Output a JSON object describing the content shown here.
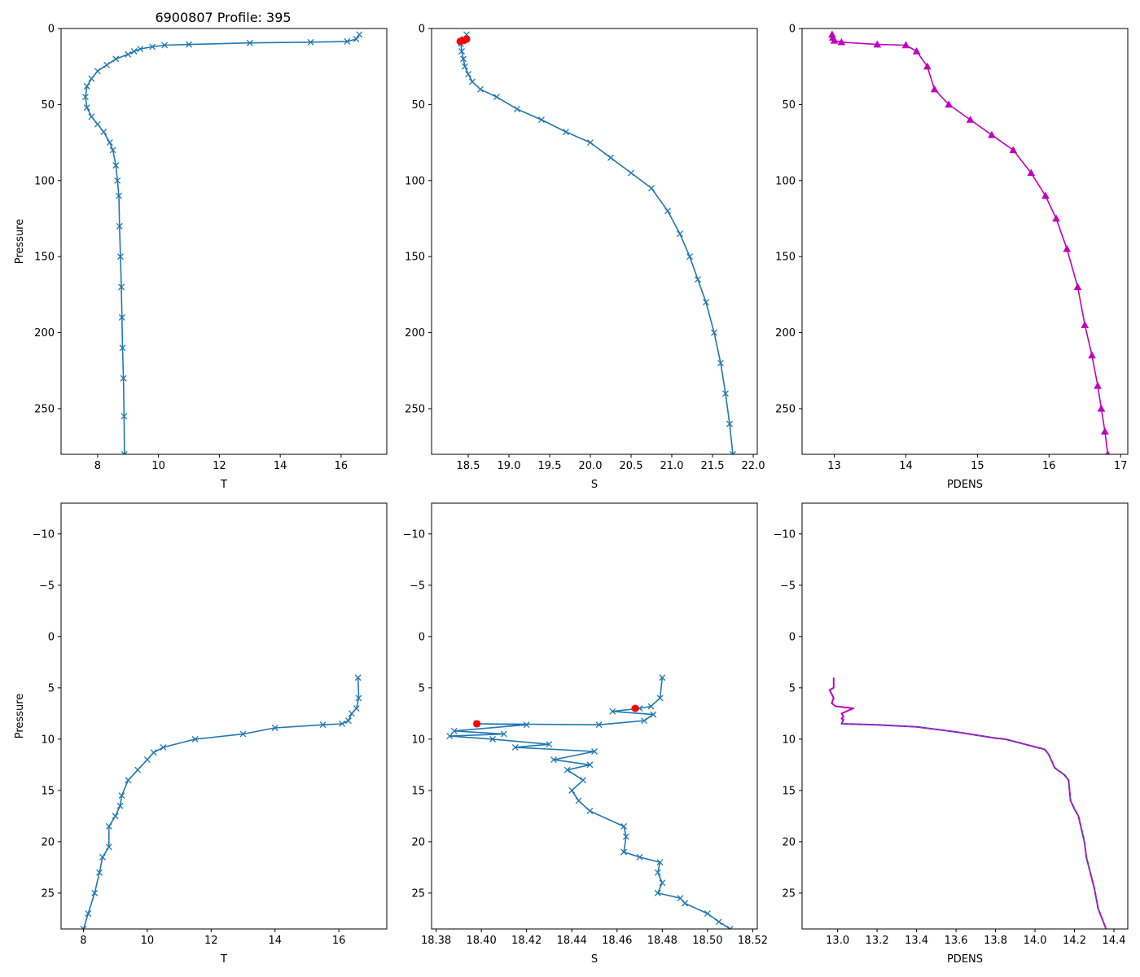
{
  "figure_title": "6900807 Profile: 395",
  "chart_data": [
    {
      "type": "line",
      "panel": "top-left",
      "title": "6900807 Profile: 395",
      "xlabel": "T",
      "ylabel": "Pressure",
      "xlim": [
        6.8,
        17.5
      ],
      "ylim": [
        280,
        0
      ],
      "xticks": [
        8,
        10,
        12,
        14,
        16
      ],
      "yticks": [
        0,
        50,
        100,
        150,
        200,
        250
      ],
      "marker": "x",
      "series": [
        {
          "name": "T",
          "color": "#1f77b4",
          "x": [
            16.6,
            16.5,
            16.2,
            15.0,
            13.0,
            11.0,
            10.2,
            9.8,
            9.4,
            9.2,
            9.0,
            8.6,
            8.3,
            8.0,
            7.8,
            7.65,
            7.6,
            7.65,
            7.8,
            8.0,
            8.2,
            8.4,
            8.5,
            8.6,
            8.65,
            8.7,
            8.72,
            8.75,
            8.78,
            8.8,
            8.82,
            8.85,
            8.87,
            8.88
          ],
          "y": [
            4,
            7,
            8.5,
            9,
            9.5,
            10.5,
            11,
            12,
            13.5,
            15,
            17,
            20,
            24,
            28,
            33,
            38,
            45,
            52,
            58,
            63,
            68,
            75,
            80,
            90,
            100,
            110,
            130,
            150,
            170,
            190,
            210,
            230,
            255,
            280
          ]
        }
      ]
    },
    {
      "type": "line",
      "panel": "top-middle",
      "xlabel": "S",
      "ylabel": "",
      "xlim": [
        18.05,
        22.05
      ],
      "ylim": [
        280,
        0
      ],
      "xticks": [
        18.5,
        19.0,
        19.5,
        20.0,
        20.5,
        21.0,
        21.5,
        22.0
      ],
      "yticks": [
        0,
        50,
        100,
        150,
        200,
        250
      ],
      "marker": "x",
      "series": [
        {
          "name": "S",
          "color": "#1f77b4",
          "x": [
            18.48,
            18.45,
            18.41,
            18.42,
            18.44,
            18.46,
            18.5,
            18.55,
            18.65,
            18.85,
            19.1,
            19.4,
            19.7,
            20.0,
            20.25,
            20.5,
            20.75,
            20.95,
            21.1,
            21.22,
            21.32,
            21.42,
            21.52,
            21.6,
            21.66,
            21.71,
            21.75
          ],
          "y": [
            4,
            7,
            10,
            15,
            20,
            25,
            30,
            35,
            40,
            45,
            53,
            60,
            68,
            75,
            85,
            95,
            105,
            120,
            135,
            150,
            165,
            180,
            200,
            220,
            240,
            260,
            280
          ]
        }
      ],
      "highlight_points": {
        "color": "#ff0000",
        "x": [
          18.4,
          18.42,
          18.45,
          18.47,
          18.48
        ],
        "y": [
          8.5,
          8.0,
          7.8,
          7.2,
          7.0
        ]
      }
    },
    {
      "type": "line",
      "panel": "top-right",
      "xlabel": "PDENS",
      "ylabel": "",
      "xlim": [
        12.55,
        17.1
      ],
      "ylim": [
        280,
        0
      ],
      "xticks": [
        13,
        14,
        15,
        16,
        17
      ],
      "yticks": [
        0,
        50,
        100,
        150,
        200,
        250
      ],
      "marker": "^",
      "series": [
        {
          "name": "PDENS",
          "color": "#bf00bf",
          "x": [
            12.97,
            12.98,
            13.0,
            13.1,
            13.6,
            14.0,
            14.15,
            14.3,
            14.4,
            14.6,
            14.9,
            15.2,
            15.5,
            15.75,
            15.95,
            16.1,
            16.25,
            16.4,
            16.5,
            16.6,
            16.68,
            16.73,
            16.78,
            16.82
          ],
          "y": [
            4,
            6,
            8,
            9,
            10.5,
            11,
            15,
            25,
            40,
            50,
            60,
            70,
            80,
            95,
            110,
            125,
            145,
            170,
            195,
            215,
            235,
            250,
            265,
            280
          ]
        }
      ]
    },
    {
      "type": "line",
      "panel": "bottom-left",
      "xlabel": "T",
      "ylabel": "Pressure",
      "xlim": [
        7.3,
        17.5
      ],
      "ylim": [
        28.5,
        -13
      ],
      "xticks": [
        8,
        10,
        12,
        14,
        16
      ],
      "yticks": [
        -10,
        -5,
        0,
        5,
        10,
        15,
        20,
        25
      ],
      "marker": "x",
      "series": [
        {
          "name": "T",
          "color": "#1f77b4",
          "x": [
            16.6,
            16.62,
            16.55,
            16.4,
            16.3,
            16.1,
            15.5,
            14.0,
            13.0,
            11.5,
            10.5,
            10.2,
            10.0,
            9.7,
            9.4,
            9.2,
            9.15,
            9.0,
            8.8,
            8.8,
            8.6,
            8.5,
            8.35,
            8.15,
            8.0
          ],
          "y": [
            4.0,
            6.0,
            7.0,
            7.5,
            8.2,
            8.5,
            8.6,
            8.9,
            9.5,
            10.0,
            10.8,
            11.3,
            12.0,
            13.0,
            14.0,
            15.5,
            16.5,
            17.5,
            18.5,
            20.5,
            21.5,
            23.0,
            25.0,
            27.0,
            28.5
          ]
        }
      ]
    },
    {
      "type": "line",
      "panel": "bottom-middle",
      "xlabel": "S",
      "ylabel": "",
      "xlim": [
        18.378,
        18.522
      ],
      "ylim": [
        28.5,
        -13
      ],
      "xticks": [
        18.38,
        18.4,
        18.42,
        18.44,
        18.46,
        18.48,
        18.5,
        18.52
      ],
      "yticks": [
        -10,
        -5,
        0,
        5,
        10,
        15,
        20,
        25
      ],
      "marker": "x",
      "series": [
        {
          "name": "S",
          "color": "#1f77b4",
          "x": [
            18.48,
            18.479,
            18.475,
            18.47,
            18.458,
            18.476,
            18.472,
            18.452,
            18.398,
            18.42,
            18.388,
            18.41,
            18.386,
            18.405,
            18.43,
            18.415,
            18.45,
            18.432,
            18.448,
            18.438,
            18.445,
            18.44,
            18.443,
            18.448,
            18.463,
            18.464,
            18.463,
            18.47,
            18.479,
            18.478,
            18.48,
            18.478,
            18.488,
            18.49,
            18.5,
            18.505,
            18.51
          ],
          "y": [
            4.0,
            6.0,
            6.8,
            7.0,
            7.3,
            7.6,
            8.2,
            8.6,
            8.5,
            8.6,
            9.2,
            9.5,
            9.7,
            10.0,
            10.5,
            10.8,
            11.2,
            12.0,
            12.5,
            13.0,
            14.0,
            15.0,
            16.0,
            17.0,
            18.5,
            19.5,
            21.0,
            21.5,
            22.0,
            23.0,
            24.0,
            25.0,
            25.5,
            26.0,
            27.0,
            27.8,
            28.5
          ]
        }
      ],
      "highlight_points": {
        "color": "#ff0000",
        "x": [
          18.398,
          18.468
        ],
        "y": [
          8.5,
          7.0
        ]
      }
    },
    {
      "type": "line",
      "panel": "bottom-right",
      "xlabel": "PDENS",
      "ylabel": "",
      "xlim": [
        12.82,
        14.47
      ],
      "ylim": [
        28.5,
        -13
      ],
      "xticks": [
        13.0,
        13.2,
        13.4,
        13.6,
        13.8,
        14.0,
        14.2,
        14.4
      ],
      "yticks": [
        -10,
        -5,
        0,
        5,
        10,
        15,
        20,
        25
      ],
      "marker": "none",
      "series": [
        {
          "name": "PDENS",
          "color": "#bf00bf",
          "x": [
            12.98,
            12.98,
            12.96,
            12.98,
            12.97,
            12.99,
            13.08,
            13.02,
            13.03,
            13.02,
            13.03,
            13.02,
            13.2,
            13.4,
            13.6,
            13.8,
            13.85,
            13.95,
            14.05,
            14.07,
            14.1,
            14.15,
            14.17,
            14.18,
            14.2,
            14.22,
            14.25,
            14.26,
            14.3,
            14.32,
            14.36
          ],
          "y": [
            4.0,
            5.0,
            5.2,
            6.0,
            6.5,
            6.8,
            7.0,
            7.5,
            7.8,
            8.0,
            8.1,
            8.5,
            8.6,
            8.8,
            9.3,
            9.9,
            10.0,
            10.5,
            11.0,
            11.5,
            12.8,
            13.5,
            14.0,
            16.0,
            16.8,
            17.5,
            20.0,
            21.5,
            24.5,
            26.5,
            28.5
          ]
        },
        {
          "name": "PDENS (dashed overlay)",
          "color": "#1f77b4",
          "x": [
            13.02,
            13.2,
            13.4,
            13.6,
            13.8,
            13.85,
            13.95,
            14.05,
            14.07,
            14.1,
            14.15,
            14.17,
            14.18,
            14.2,
            14.22,
            14.25,
            14.26,
            14.3,
            14.32,
            14.36
          ],
          "y": [
            8.5,
            8.6,
            8.8,
            9.3,
            9.9,
            10.0,
            10.5,
            11.0,
            11.5,
            12.8,
            13.5,
            14.0,
            16.0,
            16.8,
            17.5,
            20.0,
            21.5,
            24.5,
            26.5,
            28.5
          ]
        }
      ]
    }
  ]
}
